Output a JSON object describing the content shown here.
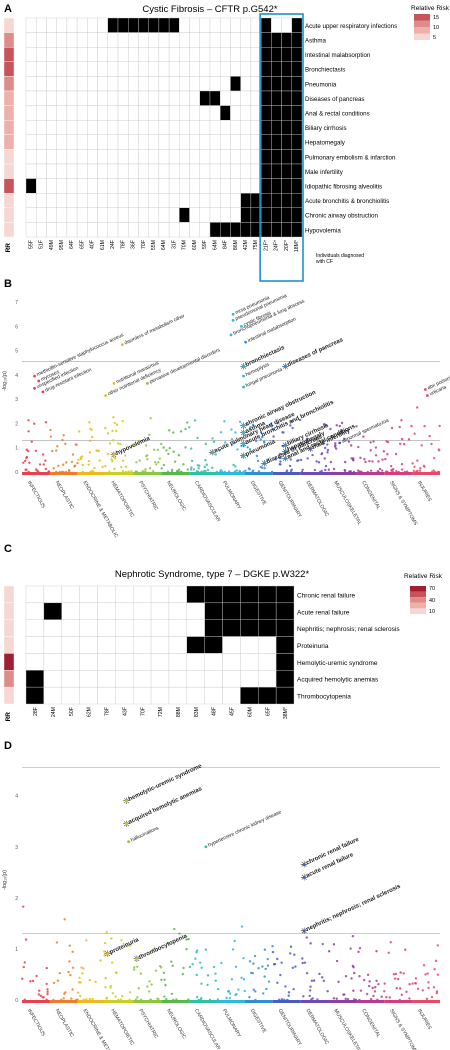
{
  "panels": {
    "A": {
      "letter": "A",
      "title": "Cystic Fibrosis – CFTR p.G542*",
      "legend_title": "Relative Risk",
      "legend_ticks": [
        "15",
        "10",
        "5"
      ],
      "rr_label": "RR",
      "highlight_label_1": "Individuals diagnosed",
      "highlight_label_2": "with CF",
      "conditions": [
        "Acute upper respiratory infections",
        "Asthma",
        "Intestinal malabsorption",
        "Bronchiectasis",
        "Pneumonia",
        "Diseases of pancreas",
        "Anal & rectal conditions",
        "Biliary cirrhosis",
        "Hepatomegaly",
        "Pulmonary embolism & infarction",
        "Male infertility",
        "Idiopathic fibrosing alveolitis",
        "Acute bronchitis & bronchiolitis",
        "Chronic airway obstruction",
        "Hypovolemia"
      ],
      "individuals": [
        "55F",
        "51F",
        "49M",
        "95M",
        "64F",
        "65F",
        "40F",
        "61M",
        "24F",
        "78F",
        "36F",
        "70F",
        "55M",
        "64M",
        "31F",
        "70M",
        "60M",
        "59F",
        "64M",
        "84F",
        "86M",
        "42M",
        "75M",
        "21F*",
        "24F*",
        "20F*",
        "18M*"
      ]
    },
    "B": {
      "letter": "B",
      "ylabel": "-log₁₀(p)",
      "yticks": [
        "0",
        "1",
        "2",
        "3",
        "4",
        "5",
        "6",
        "7"
      ],
      "categories": [
        "INFECTIOUS",
        "NEOPLASTIC",
        "ENDOCRINE & METABOLIC",
        "HEMATOPOIETIC",
        "PSYCHIATRIC",
        "NEUROLOGIC",
        "CARDIOVASCULAR",
        "PULMONARY",
        "DIGESTIVE",
        "GENITOURINARY",
        "DERMATOLOGIC",
        "MUSCULOSKELETAL",
        "CONGENITAL",
        "SIGNS & SYMPTOMS",
        "INJURIES"
      ]
    },
    "C": {
      "letter": "C",
      "title": "Nephrotic Syndrome, type 7 – DGKE p.W322*",
      "legend_title": "Relative Risk",
      "legend_ticks": [
        "70",
        "40",
        "10"
      ],
      "rr_label": "RR",
      "conditions": [
        "Chronic renal failure",
        "Acute renal failure",
        "Nephritis; nephrosis; renal sclerosis",
        "Proteinuria",
        "Hemolytic-uremic syndrome",
        "Acquired hemolytic anemias",
        "Thrombocytopenia"
      ],
      "individuals": [
        "28F",
        "24M",
        "50F",
        "62M",
        "78F",
        "43F",
        "70F",
        "72M",
        "88M",
        "83M",
        "48F",
        "45F",
        "60M",
        "65F",
        "38M*"
      ]
    },
    "D": {
      "letter": "D",
      "ylabel": "-log₁₀(p)",
      "yticks": [
        "0",
        "1",
        "2",
        "3",
        "4"
      ],
      "categories": [
        "INFECTIOUS",
        "NEOPLASTIC",
        "ENDOCRINE & METABOLIC",
        "HEMATOPOIETIC",
        "PSYCHIATRIC",
        "NEUROLOGIC",
        "CARDIOVASCULAR",
        "PULMONARY",
        "DIGESTIVE",
        "GENITOURINARY",
        "DERMATOLOGIC",
        "MUSCULOSKELETAL",
        "CONGENITAL",
        "SIGNS & SYMPTOMS",
        "INJURIES"
      ]
    }
  },
  "chart_data": [
    {
      "type": "heatmap",
      "title": "Cystic Fibrosis – CFTR p.G542*",
      "rows": [
        "Acute upper respiratory infections",
        "Asthma",
        "Intestinal malabsorption",
        "Bronchiectasis",
        "Pneumonia",
        "Diseases of pancreas",
        "Anal & rectal conditions",
        "Biliary cirrhosis",
        "Hepatomegaly",
        "Pulmonary embolism & infarction",
        "Male infertility",
        "Idiopathic fibrosing alveolitis",
        "Acute bronchitis & bronchiolitis",
        "Chronic airway obstruction",
        "Hypovolemia"
      ],
      "columns": [
        "55F",
        "51F",
        "49M",
        "95M",
        "64F",
        "65F",
        "40F",
        "61M",
        "24F",
        "78F",
        "36F",
        "70F",
        "55M",
        "64M",
        "31F",
        "70M",
        "60M",
        "59F",
        "64M",
        "84F",
        "86M",
        "42M",
        "75M",
        "21F*",
        "24F*",
        "20F*",
        "18M*"
      ],
      "present": [
        [
          0,
          8
        ],
        [
          0,
          9
        ],
        [
          0,
          10
        ],
        [
          0,
          11
        ],
        [
          0,
          12
        ],
        [
          0,
          13
        ],
        [
          0,
          14
        ],
        [
          0,
          23
        ],
        [
          0,
          26
        ],
        [
          1,
          23
        ],
        [
          1,
          24
        ],
        [
          1,
          25
        ],
        [
          1,
          26
        ],
        [
          2,
          23
        ],
        [
          2,
          24
        ],
        [
          2,
          25
        ],
        [
          2,
          26
        ],
        [
          3,
          23
        ],
        [
          3,
          24
        ],
        [
          3,
          25
        ],
        [
          3,
          26
        ],
        [
          4,
          20
        ],
        [
          4,
          23
        ],
        [
          4,
          24
        ],
        [
          4,
          25
        ],
        [
          4,
          26
        ],
        [
          5,
          17
        ],
        [
          5,
          18
        ],
        [
          5,
          23
        ],
        [
          5,
          24
        ],
        [
          5,
          25
        ],
        [
          5,
          26
        ],
        [
          6,
          19
        ],
        [
          6,
          23
        ],
        [
          6,
          24
        ],
        [
          6,
          25
        ],
        [
          6,
          26
        ],
        [
          7,
          23
        ],
        [
          7,
          24
        ],
        [
          7,
          25
        ],
        [
          7,
          26
        ],
        [
          8,
          23
        ],
        [
          8,
          24
        ],
        [
          8,
          25
        ],
        [
          8,
          26
        ],
        [
          9,
          23
        ],
        [
          9,
          24
        ],
        [
          9,
          25
        ],
        [
          9,
          26
        ],
        [
          10,
          23
        ],
        [
          10,
          24
        ],
        [
          10,
          25
        ],
        [
          10,
          26
        ],
        [
          11,
          0
        ],
        [
          11,
          23
        ],
        [
          11,
          24
        ],
        [
          11,
          25
        ],
        [
          11,
          26
        ],
        [
          12,
          21
        ],
        [
          12,
          22
        ],
        [
          12,
          23
        ],
        [
          12,
          24
        ],
        [
          12,
          25
        ],
        [
          12,
          26
        ],
        [
          13,
          15
        ],
        [
          13,
          21
        ],
        [
          13,
          22
        ],
        [
          13,
          23
        ],
        [
          13,
          24
        ],
        [
          13,
          25
        ],
        [
          13,
          26
        ],
        [
          14,
          18
        ],
        [
          14,
          19
        ],
        [
          14,
          20
        ],
        [
          14,
          21
        ],
        [
          14,
          22
        ],
        [
          14,
          23
        ],
        [
          14,
          24
        ],
        [
          14,
          25
        ],
        [
          14,
          26
        ]
      ],
      "rr_levels": [
        1,
        3,
        4,
        4,
        3,
        2,
        2,
        2,
        2,
        1,
        1,
        4,
        1,
        1,
        1
      ],
      "highlight_columns": [
        "21F*",
        "24F*",
        "20F*",
        "18M*"
      ]
    },
    {
      "type": "scatter",
      "ylabel": "-log10(p)",
      "ylim": [
        0,
        7.5
      ],
      "significance_lines": [
        4.55,
        1.3
      ],
      "categories": [
        "INFECTIOUS",
        "NEOPLASTIC",
        "ENDOCRINE & METABOLIC",
        "HEMATOPOIETIC",
        "PSYCHIATRIC",
        "NEUROLOGIC",
        "CARDIOVASCULAR",
        "PULMONARY",
        "DIGESTIVE",
        "GENITOURINARY",
        "DERMATOLOGIC",
        "MUSCULOSKELETAL",
        "CONGENITAL",
        "SIGNS & SYMPTOMS",
        "INJURIES"
      ],
      "labeled_points": [
        {
          "x": 0.03,
          "y": 3.95,
          "label": "methicillin-sensitive staphylococcus aureus",
          "category": "INFECTIOUS",
          "star": false
        },
        {
          "x": 0.04,
          "y": 3.75,
          "label": "mycoses",
          "category": "INFECTIOUS",
          "star": false
        },
        {
          "x": 0.03,
          "y": 3.45,
          "label": "unspecified infection",
          "category": "INFECTIOUS",
          "star": false
        },
        {
          "x": 0.05,
          "y": 3.3,
          "label": "drug-resistant infection",
          "category": "INFECTIOUS",
          "star": false
        },
        {
          "x": 0.24,
          "y": 5.25,
          "label": "disorders of metabolism other",
          "category": "ENDOCRINE & METABOLIC",
          "star": false
        },
        {
          "x": 0.22,
          "y": 3.65,
          "label": "nutritional marasmus",
          "category": "ENDOCRINE & METABOLIC",
          "star": false
        },
        {
          "x": 0.2,
          "y": 3.15,
          "label": "other nutritional deficiency",
          "category": "ENDOCRINE & METABOLIC",
          "star": false
        },
        {
          "x": 0.3,
          "y": 3.65,
          "label": "pervasive developmental disorders",
          "category": "PSYCHIATRIC",
          "star": false
        },
        {
          "x": 0.22,
          "y": 0.7,
          "label": "hypovolemia",
          "category": "ENDOCRINE & METABOLIC",
          "star": true
        },
        {
          "x": 0.505,
          "y": 6.5,
          "label": "mrsa pneumonia",
          "category": "PULMONARY",
          "star": false
        },
        {
          "x": 0.505,
          "y": 6.25,
          "label": "pseudomonal pneumonia",
          "category": "PULMONARY",
          "star": false
        },
        {
          "x": 0.525,
          "y": 6.0,
          "label": "cystic fibrosis",
          "category": "PULMONARY",
          "star": false
        },
        {
          "x": 0.5,
          "y": 5.65,
          "label": "bronchopneumonia & lung abscess",
          "category": "PULMONARY",
          "star": false
        },
        {
          "x": 0.535,
          "y": 5.35,
          "label": "intestinal malabsorption",
          "category": "DIGESTIVE",
          "star": false
        },
        {
          "x": 0.53,
          "y": 4.35,
          "label": "bronchiectasis",
          "category": "PULMONARY",
          "star": true
        },
        {
          "x": 0.63,
          "y": 4.35,
          "label": "diseases of pancreas",
          "category": "DIGESTIVE",
          "star": true
        },
        {
          "x": 0.53,
          "y": 3.95,
          "label": "hemoptysis",
          "category": "PULMONARY",
          "star": false
        },
        {
          "x": 0.53,
          "y": 3.5,
          "label": "fungal pneumonia",
          "category": "PULMONARY",
          "star": false
        },
        {
          "x": 0.53,
          "y": 1.9,
          "label": "chronic airway obstruction",
          "category": "PULMONARY",
          "star": true
        },
        {
          "x": 0.53,
          "y": 1.6,
          "label": "asthma",
          "category": "PULMONARY",
          "star": true
        },
        {
          "x": 0.455,
          "y": 0.8,
          "label": "acute pulmonary heart disease",
          "category": "CARDIOVASCULAR",
          "star": true
        },
        {
          "x": 0.53,
          "y": 1.15,
          "label": "acute bronchitis and bronchiolitis",
          "category": "PULMONARY",
          "star": true
        },
        {
          "x": 0.53,
          "y": 0.65,
          "label": "pneumonia",
          "category": "PULMONARY",
          "star": true
        },
        {
          "x": 0.63,
          "y": 1.1,
          "label": "biliary cirrhosis",
          "category": "DIGESTIVE",
          "star": true
        },
        {
          "x": 0.63,
          "y": 0.85,
          "label": "hepatomegaly",
          "category": "DIGESTIVE",
          "star": true
        },
        {
          "x": 0.63,
          "y": 0.55,
          "label": "anal and rectal conditions",
          "category": "DIGESTIVE",
          "star": true
        },
        {
          "x": 0.69,
          "y": 0.95,
          "label": "male infertility",
          "category": "GENITOURINARY",
          "star": true
        },
        {
          "x": 0.76,
          "y": 1.2,
          "label": "abnormal spermatozoa",
          "category": "GENITOURINARY",
          "star": false
        },
        {
          "x": 0.58,
          "y": 0.35,
          "label": "diseases of pancreas",
          "category": "DIGESTIVE",
          "star": true
        },
        {
          "x": 0.965,
          "y": 3.4,
          "label": "abx poisoning",
          "category": "INJURIES",
          "star": false
        },
        {
          "x": 0.97,
          "y": 3.15,
          "label": "urticaria",
          "category": "INJURIES",
          "star": false
        }
      ]
    },
    {
      "type": "heatmap",
      "title": "Nephrotic Syndrome, type 7 – DGKE p.W322*",
      "rows": [
        "Chronic renal failure",
        "Acute renal failure",
        "Nephritis; nephrosis; renal sclerosis",
        "Proteinuria",
        "Hemolytic-uremic syndrome",
        "Acquired hemolytic anemias",
        "Thrombocytopenia"
      ],
      "columns": [
        "28F",
        "24M",
        "50F",
        "62M",
        "78F",
        "43F",
        "70F",
        "72M",
        "88M",
        "83M",
        "48F",
        "45F",
        "60M",
        "65F",
        "38M*"
      ],
      "present": [
        [
          0,
          9
        ],
        [
          0,
          10
        ],
        [
          0,
          11
        ],
        [
          0,
          12
        ],
        [
          0,
          13
        ],
        [
          0,
          14
        ],
        [
          1,
          1
        ],
        [
          1,
          10
        ],
        [
          1,
          11
        ],
        [
          1,
          12
        ],
        [
          1,
          13
        ],
        [
          1,
          14
        ],
        [
          2,
          10
        ],
        [
          2,
          11
        ],
        [
          2,
          12
        ],
        [
          2,
          13
        ],
        [
          2,
          14
        ],
        [
          3,
          9
        ],
        [
          3,
          10
        ],
        [
          3,
          14
        ],
        [
          4,
          14
        ],
        [
          5,
          0
        ],
        [
          5,
          14
        ],
        [
          6,
          0
        ],
        [
          6,
          12
        ],
        [
          6,
          13
        ],
        [
          6,
          14
        ]
      ],
      "rr_levels": [
        1,
        1,
        1,
        1,
        5,
        3,
        1
      ]
    },
    {
      "type": "scatter",
      "ylabel": "-log10(p)",
      "ylim": [
        0,
        4.7
      ],
      "significance_lines": [
        4.55,
        1.3
      ],
      "categories": [
        "INFECTIOUS",
        "NEOPLASTIC",
        "ENDOCRINE & METABOLIC",
        "HEMATOPOIETIC",
        "PSYCHIATRIC",
        "NEUROLOGIC",
        "CARDIOVASCULAR",
        "PULMONARY",
        "DIGESTIVE",
        "GENITOURINARY",
        "DERMATOLOGIC",
        "MUSCULOSKELETAL",
        "CONGENITAL",
        "SIGNS & SYMPTOMS",
        "INJURIES"
      ],
      "labeled_points": [
        {
          "x": 0.25,
          "y": 3.9,
          "label": "hemolytic-uremic syndrome",
          "category": "HEMATOPOIETIC",
          "star": true
        },
        {
          "x": 0.25,
          "y": 3.45,
          "label": "acquired hemolytic anemias",
          "category": "HEMATOPOIETIC",
          "star": true
        },
        {
          "x": 0.255,
          "y": 3.1,
          "label": "hallucinations",
          "category": "PSYCHIATRIC",
          "star": false
        },
        {
          "x": 0.44,
          "y": 3.0,
          "label": "hypertensive chronic kidney disease",
          "category": "CARDIOVASCULAR",
          "star": false
        },
        {
          "x": 0.675,
          "y": 2.65,
          "label": "chronic renal failure",
          "category": "GENITOURINARY",
          "star": true
        },
        {
          "x": 0.675,
          "y": 2.4,
          "label": "acute renal failure",
          "category": "GENITOURINARY",
          "star": true
        },
        {
          "x": 0.675,
          "y": 1.35,
          "label": "nephritis; nephrosis; renal sclerosis",
          "category": "GENITOURINARY",
          "star": true
        },
        {
          "x": 0.205,
          "y": 0.9,
          "label": "proteinuria",
          "category": "ENDOCRINE & METABOLIC",
          "star": true
        },
        {
          "x": 0.275,
          "y": 0.8,
          "label": "thrombocytopenia",
          "category": "HEMATOPOIETIC",
          "star": true
        }
      ]
    }
  ]
}
